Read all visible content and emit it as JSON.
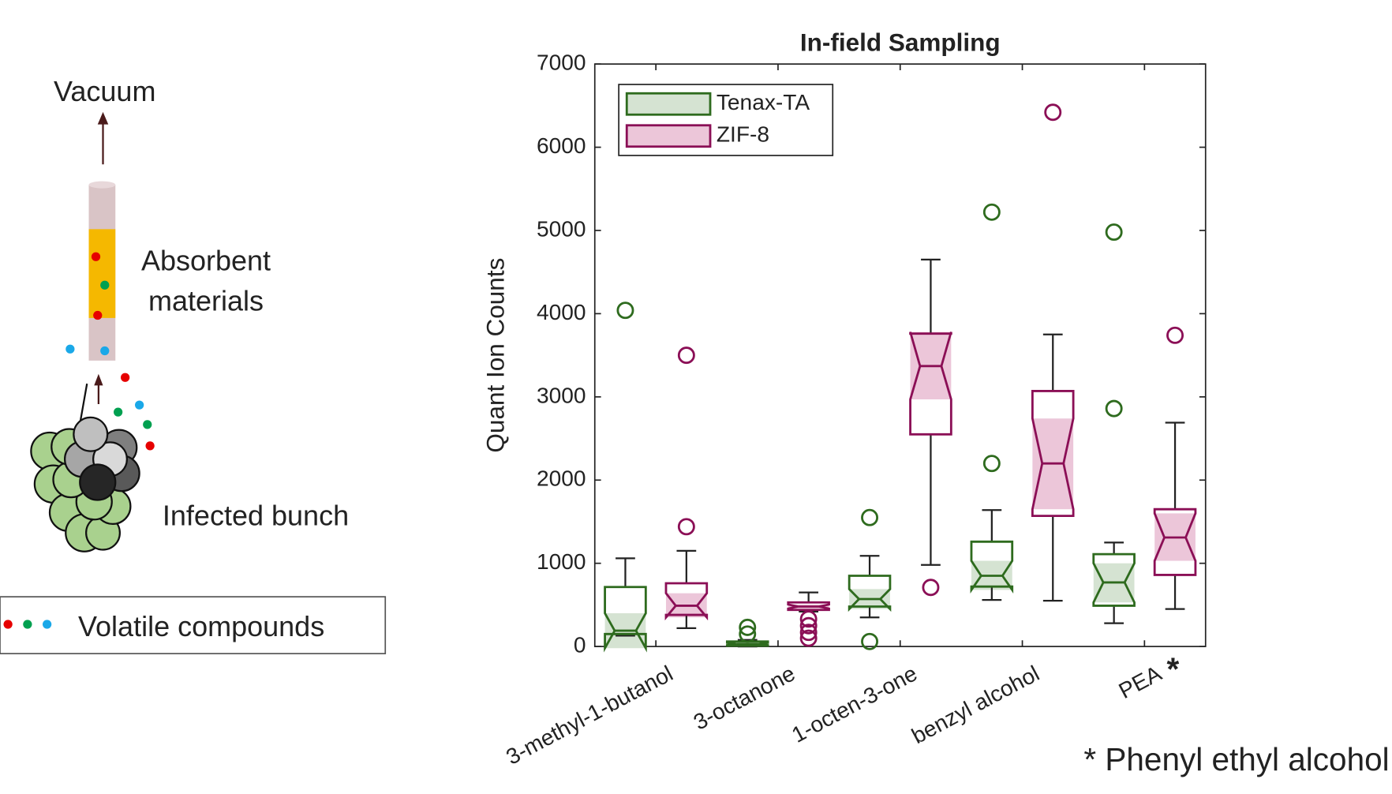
{
  "illustration": {
    "vacuum": "Vacuum",
    "absorbent": [
      "Absorbent",
      "materials"
    ],
    "bunch": "Infected bunch",
    "legend": "Volatile compounds"
  },
  "chart_data": {
    "type": "box",
    "title": "In-field Sampling",
    "ylabel": "Quant Ion Counts",
    "categories": [
      "3-methyl-1-butanol",
      "3-octanone",
      "1-octen-3-one",
      "benzyl alcohol",
      "PEA"
    ],
    "category_marker": "*",
    "annotation": "* Phenyl ethyl alcohol",
    "annotation_color": "#7a0a4e",
    "ylim": [
      0,
      7000
    ],
    "yticks": [
      0,
      1000,
      2000,
      3000,
      4000,
      5000,
      6000,
      7000
    ],
    "legend": "upper left",
    "series": [
      {
        "name": "Tenax-TA",
        "color": "#2e6b1e",
        "notch_color": "#d5e3d2",
        "stats": [
          {
            "min": 130,
            "q1": 150,
            "median": 190,
            "q3": 715,
            "max": 1060,
            "notch": [
              -20,
              400
            ],
            "outliers": [
              4040
            ]
          },
          {
            "min": 0,
            "q1": 10,
            "median": 30,
            "q3": 60,
            "max": 80,
            "notch": [
              15,
              45
            ],
            "outliers": [
              150,
              230
            ]
          },
          {
            "min": 350,
            "q1": 480,
            "median": 570,
            "q3": 850,
            "max": 1090,
            "notch": [
              450,
              690
            ],
            "outliers": [
              60,
              1550
            ]
          },
          {
            "min": 560,
            "q1": 720,
            "median": 850,
            "q3": 1260,
            "max": 1640,
            "notch": [
              680,
              1030
            ],
            "outliers": [
              2200,
              5220
            ]
          },
          {
            "min": 280,
            "q1": 490,
            "median": 770,
            "q3": 1110,
            "max": 1250,
            "notch": [
              530,
              1000
            ],
            "outliers": [
              2860,
              4980
            ]
          }
        ]
      },
      {
        "name": "ZIF-8",
        "color": "#8b0f56",
        "notch_color": "#ecc6d9",
        "stats": [
          {
            "min": 220,
            "q1": 380,
            "median": 490,
            "q3": 760,
            "max": 1150,
            "notch": [
              350,
              640
            ],
            "outliers": [
              1440,
              3500
            ]
          },
          {
            "min": 420,
            "q1": 440,
            "median": 480,
            "q3": 530,
            "max": 650,
            "notch": [
              455,
              505
            ],
            "outliers": [
              100,
              170,
              250,
              330
            ]
          },
          {
            "min": 980,
            "q1": 2550,
            "median": 3370,
            "q3": 3760,
            "max": 4650,
            "notch": [
              2970,
              3780
            ],
            "outliers": [
              710
            ]
          },
          {
            "min": 550,
            "q1": 1570,
            "median": 2200,
            "q3": 3070,
            "max": 3750,
            "notch": [
              1650,
              2740
            ],
            "outliers": [
              6420
            ]
          },
          {
            "min": 450,
            "q1": 860,
            "median": 1310,
            "q3": 1650,
            "max": 2690,
            "notch": [
              1030,
              1600
            ],
            "outliers": [
              3740
            ]
          }
        ]
      }
    ]
  }
}
